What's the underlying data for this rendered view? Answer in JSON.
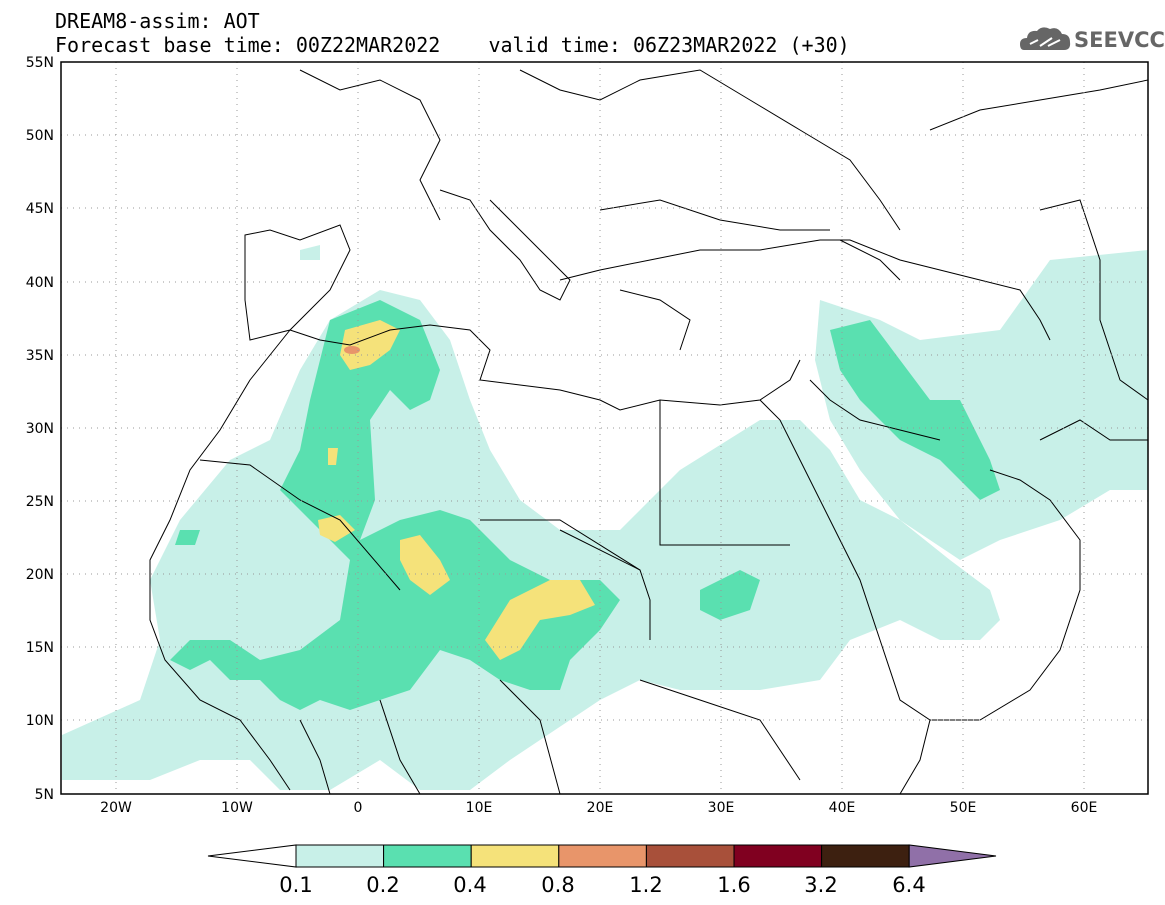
{
  "title": {
    "line1": "DREAM8-assim: AOT",
    "line2": "Forecast base time: 00Z22MAR2022    valid time: 06Z23MAR2022 (+30)"
  },
  "logo": {
    "text": "SEEVCCC",
    "icon": "cloud-icon"
  },
  "map": {
    "lat_labels": [
      "55N",
      "50N",
      "45N",
      "40N",
      "35N",
      "30N",
      "25N",
      "20N",
      "15N",
      "10N",
      "5N"
    ],
    "lon_labels": [
      "20W",
      "10W",
      "0",
      "10E",
      "20E",
      "30E",
      "40E",
      "50E",
      "60E"
    ]
  },
  "colorbar": {
    "labels": [
      "0.1",
      "0.2",
      "0.4",
      "0.8",
      "1.2",
      "1.6",
      "3.2",
      "6.4"
    ],
    "colors": [
      "#ffffff",
      "#c8f0e8",
      "#5ae0b0",
      "#f5e27a",
      "#e8956a",
      "#a8503a",
      "#800020",
      "#3d2010",
      "#9070a8"
    ]
  }
}
